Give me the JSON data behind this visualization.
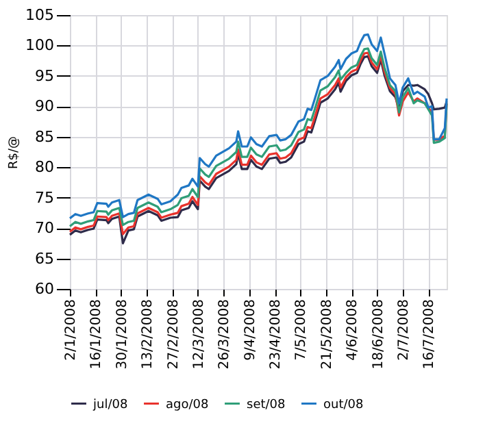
{
  "chart_data": {
    "type": "line",
    "ylabel": "R$/@",
    "x": [
      "2008-01-02",
      "2008-01-05",
      "2008-01-08",
      "2008-01-12",
      "2008-01-15",
      "2008-01-17",
      "2008-01-22",
      "2008-01-23",
      "2008-01-25",
      "2008-01-29",
      "2008-01-31",
      "2008-02-03",
      "2008-02-06",
      "2008-02-08",
      "2008-02-14",
      "2008-02-19",
      "2008-02-21",
      "2008-02-26",
      "2008-03-01",
      "2008-03-03",
      "2008-03-07",
      "2008-03-09",
      "2008-03-12",
      "2008-03-13",
      "2008-03-16",
      "2008-03-18",
      "2008-03-22",
      "2008-03-29",
      "2008-04-02",
      "2008-04-03",
      "2008-04-05",
      "2008-04-08",
      "2008-04-10",
      "2008-04-13",
      "2008-04-16",
      "2008-04-20",
      "2008-04-24",
      "2008-04-26",
      "2008-04-29",
      "2008-05-02",
      "2008-05-06",
      "2008-05-09",
      "2008-05-11",
      "2008-05-13",
      "2008-05-15",
      "2008-05-18",
      "2008-05-22",
      "2008-05-26",
      "2008-05-28",
      "2008-05-29",
      "2008-06-01",
      "2008-06-04",
      "2008-06-07",
      "2008-06-09",
      "2008-06-11",
      "2008-06-13",
      "2008-06-15",
      "2008-06-18",
      "2008-06-20",
      "2008-06-22",
      "2008-06-25",
      "2008-06-28",
      "2008-06-30",
      "2008-07-02",
      "2008-07-05",
      "2008-07-08",
      "2008-07-10",
      "2008-07-14",
      "2008-07-16",
      "2008-07-18",
      "2008-07-19",
      "2008-07-22",
      "2008-07-25",
      "2008-07-26"
    ],
    "series": [
      {
        "name": "jul/08",
        "color": "#2e2b4a",
        "values": [
          68.9,
          69.6,
          69.3,
          69.7,
          69.9,
          71.4,
          71.3,
          70.8,
          71.5,
          71.9,
          67.5,
          69.6,
          69.8,
          71.9,
          72.8,
          72.1,
          71.2,
          71.7,
          71.8,
          72.9,
          73.3,
          74.4,
          73.1,
          77.8,
          76.8,
          76.4,
          78.2,
          79.4,
          80.5,
          82.2,
          79.7,
          79.7,
          81.2,
          80.1,
          79.7,
          81.4,
          81.6,
          80.7,
          80.9,
          81.6,
          83.8,
          84.2,
          85.9,
          85.7,
          87.6,
          90.6,
          91.3,
          92.8,
          93.9,
          92.4,
          94.2,
          95.1,
          95.5,
          97.0,
          98.1,
          98.2,
          96.6,
          95.5,
          97.7,
          95.1,
          92.5,
          91.5,
          89.5,
          92.5,
          93.5,
          93.4,
          93.5,
          92.8,
          92.0,
          90.5,
          89.5,
          89.6,
          89.8,
          90.8
        ]
      },
      {
        "name": "ago/08",
        "color": "#e8322c",
        "values": [
          69.4,
          70.1,
          69.8,
          70.2,
          70.4,
          71.9,
          71.8,
          71.3,
          72.0,
          72.4,
          69.0,
          70.1,
          70.3,
          72.4,
          73.3,
          72.6,
          71.7,
          72.2,
          72.5,
          73.6,
          74.0,
          75.1,
          73.8,
          78.5,
          77.5,
          77.1,
          78.9,
          80.1,
          81.2,
          82.9,
          80.4,
          80.4,
          81.9,
          80.8,
          80.4,
          82.1,
          82.3,
          81.4,
          81.6,
          82.3,
          84.5,
          84.9,
          86.6,
          86.4,
          88.3,
          91.3,
          92.0,
          93.5,
          94.6,
          93.1,
          94.8,
          95.7,
          96.1,
          97.6,
          98.7,
          98.8,
          97.2,
          96.1,
          98.3,
          95.7,
          93.0,
          92.0,
          88.5,
          90.8,
          92.3,
          90.8,
          91.3,
          90.5,
          89.8,
          89.0,
          84.5,
          84.5,
          85.2,
          90.5
        ]
      },
      {
        "name": "set/08",
        "color": "#2f9e78",
        "values": [
          70.3,
          71.0,
          70.7,
          71.1,
          71.3,
          72.8,
          72.7,
          72.2,
          72.9,
          73.3,
          70.5,
          71.0,
          71.2,
          73.3,
          74.2,
          73.5,
          72.6,
          73.1,
          73.8,
          74.9,
          75.3,
          76.4,
          75.1,
          79.8,
          78.8,
          78.4,
          80.2,
          81.4,
          82.5,
          84.2,
          81.7,
          81.7,
          83.2,
          82.1,
          81.7,
          83.4,
          83.6,
          82.7,
          82.9,
          83.6,
          85.8,
          86.2,
          87.9,
          87.7,
          89.6,
          92.6,
          93.3,
          94.8,
          95.9,
          94.4,
          95.5,
          96.4,
          96.8,
          98.3,
          99.4,
          99.5,
          97.9,
          96.8,
          99.0,
          96.4,
          93.5,
          92.5,
          89.0,
          91.5,
          93.0,
          90.5,
          91.0,
          90.5,
          89.5,
          88.5,
          84.0,
          84.2,
          84.8,
          90.5
        ]
      },
      {
        "name": "out/08",
        "color": "#1f77c4",
        "values": [
          71.6,
          72.3,
          72.0,
          72.4,
          72.6,
          74.1,
          74.0,
          73.5,
          74.2,
          74.6,
          71.8,
          72.3,
          72.5,
          74.6,
          75.5,
          74.8,
          73.9,
          74.4,
          75.5,
          76.6,
          77.0,
          78.1,
          76.8,
          81.5,
          80.5,
          80.1,
          81.9,
          83.1,
          84.2,
          85.9,
          83.4,
          83.4,
          84.9,
          83.8,
          83.4,
          85.1,
          85.3,
          84.4,
          84.6,
          85.3,
          87.5,
          87.9,
          89.6,
          89.4,
          91.3,
          94.3,
          95.0,
          96.5,
          97.6,
          96.1,
          97.8,
          98.7,
          99.1,
          100.6,
          101.7,
          101.8,
          100.2,
          99.1,
          101.3,
          98.7,
          94.6,
          93.5,
          90.5,
          93.1,
          94.6,
          92.0,
          92.4,
          91.6,
          89.8,
          90.0,
          84.6,
          84.6,
          86.4,
          91.3
        ]
      }
    ],
    "xlim": [
      "2008-01-02",
      "2008-07-26"
    ],
    "xticks": [
      {
        "value": "2008-01-02",
        "label": "2/1/2008"
      },
      {
        "value": "2008-01-16",
        "label": "16/1/2008"
      },
      {
        "value": "2008-01-30",
        "label": "30/1/2008"
      },
      {
        "value": "2008-02-13",
        "label": "13/2/2008"
      },
      {
        "value": "2008-02-27",
        "label": "27/2/2008"
      },
      {
        "value": "2008-03-12",
        "label": "12/3/2008"
      },
      {
        "value": "2008-03-26",
        "label": "26/3/2008"
      },
      {
        "value": "2008-04-09",
        "label": "9/4/2008"
      },
      {
        "value": "2008-04-23",
        "label": "23/4/2008"
      },
      {
        "value": "2008-05-07",
        "label": "7/5/2008"
      },
      {
        "value": "2008-05-21",
        "label": "21/5/2008"
      },
      {
        "value": "2008-06-04",
        "label": "4/6/2008"
      },
      {
        "value": "2008-06-18",
        "label": "18/6/2008"
      },
      {
        "value": "2008-07-02",
        "label": "2/7/2008"
      },
      {
        "value": "2008-07-16",
        "label": "16/7/2008"
      }
    ],
    "ylim": [
      60,
      105
    ],
    "yticks": [
      60,
      65,
      70,
      75,
      80,
      85,
      90,
      95,
      100,
      105
    ],
    "grid": true,
    "legend": "bottom",
    "line_style": "solid",
    "marker": "none"
  }
}
